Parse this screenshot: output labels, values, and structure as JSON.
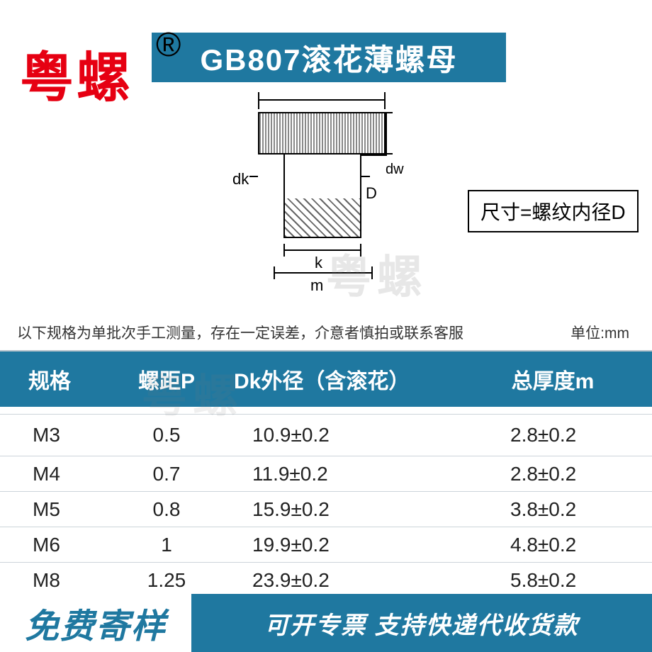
{
  "brand": "粤螺",
  "reg_symbol": "®",
  "title": "GB807滚花薄螺母",
  "diagram_labels": {
    "dk": "dk",
    "D": "D",
    "dw": "dw",
    "k": "k",
    "m": "m"
  },
  "size_note": "尺寸=螺纹内径D",
  "watermark": "粤螺",
  "measurement_note": "以下规格为单批次手工测量，存在一定误差，介意者慎拍或联系客服",
  "unit_label": "单位:mm",
  "table": {
    "columns": [
      "规格",
      "螺距P",
      "Dk外径（含滚花）",
      "总厚度m"
    ],
    "rows": [
      [
        "M3",
        "0.5",
        "10.9±0.2",
        "2.8±0.2"
      ],
      [
        "M4",
        "0.7",
        "11.9±0.2",
        "2.8±0.2"
      ],
      [
        "M5",
        "0.8",
        "15.9±0.2",
        "3.8±0.2"
      ],
      [
        "M6",
        "1",
        "19.9±0.2",
        "4.8±0.2"
      ],
      [
        "M8",
        "1.25",
        "23.9±0.2",
        "5.8±0.2"
      ]
    ],
    "header_bg": "#1f78a0",
    "header_fg": "#ffffff",
    "row_fg": "#222222",
    "border_color": "#ccd4da"
  },
  "footer": {
    "left": "免费寄样",
    "right": "可开专票 支持快递代收货款",
    "left_color": "#1f78a0",
    "right_bg": "#1f78a0"
  },
  "colors": {
    "brand_red": "#e60012",
    "primary_blue": "#1f78a0",
    "background": "#ffffff"
  }
}
